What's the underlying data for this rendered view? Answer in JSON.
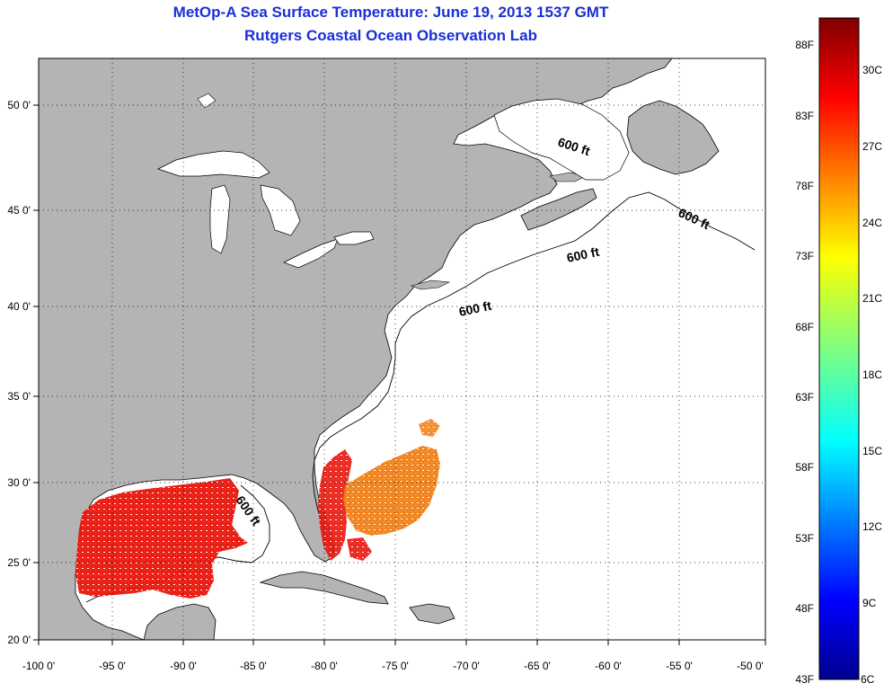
{
  "title": {
    "line1": "MetOp-A Sea Surface Temperature:  June 19, 2013 1537 GMT",
    "line2": "Rutgers Coastal Ocean Observation Lab"
  },
  "map": {
    "lon_ticks": [
      "-100 0'",
      "-95 0'",
      "-90 0'",
      "-85 0'",
      "-80 0'",
      "-75 0'",
      "-70 0'",
      "-65 0'",
      "-60 0'",
      "-55 0'",
      "-50 0'"
    ],
    "lat_ticks": [
      "20 0'",
      "25 0'",
      "30 0'",
      "35 0'",
      "40 0'",
      "45 0'",
      "50 0'"
    ],
    "lon_range": [
      -100,
      -50
    ],
    "lat_range": [
      20,
      52
    ],
    "land_color": "#b4b4b4",
    "ocean_color": "#ffffff",
    "contour_labels": [
      "600 ft",
      "600 ft",
      "600 ft",
      "600 ft",
      "600 ft"
    ]
  },
  "colorbar": {
    "fahrenheit": [
      "88F",
      "83F",
      "78F",
      "73F",
      "68F",
      "63F",
      "58F",
      "53F",
      "48F",
      "43F"
    ],
    "celsius": [
      "30C",
      "27C",
      "24C",
      "21C",
      "18C",
      "15C",
      "12C",
      "9C",
      "6C"
    ],
    "colormap": "jet"
  }
}
